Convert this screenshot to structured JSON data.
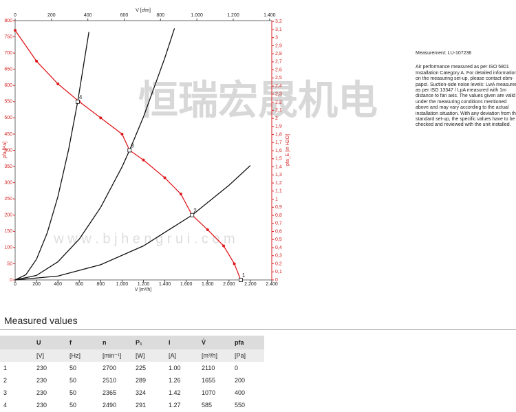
{
  "chart_data": {
    "type": "line",
    "title": "V [cfm]",
    "x_label": "V [m³/h]",
    "y_label": "pfa [Pa]",
    "y2_label": "pfa_E [in H2O]",
    "xlim": [
      0,
      2400
    ],
    "xticks": [
      0,
      200,
      400,
      600,
      800,
      {
        "value": 1000,
        "label": "1.000"
      },
      {
        "value": 1200,
        "label": "1.200"
      },
      {
        "value": 1400,
        "label": "1.400"
      },
      {
        "value": 1600,
        "label": "1.600"
      },
      {
        "value": 1800,
        "label": "1.800"
      },
      {
        "value": 2000,
        "label": "2.000"
      },
      {
        "value": 2200,
        "label": "2.200"
      },
      {
        "value": 2400,
        "label": "2.400"
      }
    ],
    "x2lim": [
      0,
      1412
    ],
    "x2ticks": [
      0,
      200,
      400,
      600,
      800,
      {
        "value": 1000,
        "label": "1.000"
      },
      {
        "value": 1200,
        "label": "1.200"
      },
      {
        "value": 1400,
        "label": "1.400"
      }
    ],
    "ylim": [
      0,
      800
    ],
    "yticks": [
      0,
      50,
      100,
      150,
      200,
      250,
      300,
      350,
      400,
      450,
      500,
      550,
      600,
      650,
      700,
      750,
      800
    ],
    "y2lim": [
      0,
      3.21
    ],
    "y2ticks": [
      0,
      {
        "value": 0.1,
        "label": "0,1"
      },
      {
        "value": 0.2,
        "label": "0,2"
      },
      {
        "value": 0.3,
        "label": "0,3"
      },
      {
        "value": 0.4,
        "label": "0,4"
      },
      {
        "value": 0.5,
        "label": "0,5"
      },
      {
        "value": 0.6,
        "label": "0,6"
      },
      {
        "value": 0.7,
        "label": "0,7"
      },
      {
        "value": 0.8,
        "label": "0,8"
      },
      {
        "value": 0.9,
        "label": "0,9"
      },
      1,
      {
        "value": 1.1,
        "label": "1,1"
      },
      {
        "value": 1.2,
        "label": "1,2"
      },
      {
        "value": 1.3,
        "label": "1,3"
      },
      {
        "value": 1.4,
        "label": "1,4"
      },
      {
        "value": 1.5,
        "label": "1,5"
      },
      {
        "value": 1.6,
        "label": "1,6"
      },
      {
        "value": 1.7,
        "label": "1,7"
      },
      {
        "value": 1.8,
        "label": "1,8"
      },
      {
        "value": 1.9,
        "label": "1,9"
      },
      2,
      {
        "value": 2.1,
        "label": "2,1"
      },
      {
        "value": 2.2,
        "label": "2,2"
      },
      {
        "value": 2.3,
        "label": "2,3"
      },
      {
        "value": 2.4,
        "label": "2,4"
      },
      {
        "value": 2.5,
        "label": "2,5"
      },
      {
        "value": 2.6,
        "label": "2,6"
      },
      {
        "value": 2.7,
        "label": "2,7"
      },
      {
        "value": 2.8,
        "label": "2,8"
      },
      {
        "value": 2.9,
        "label": "2,9"
      },
      3,
      {
        "value": 3.1,
        "label": "3,1"
      },
      {
        "value": 3.2,
        "label": "3,2"
      }
    ],
    "grid": false,
    "axis_color": "#d42020",
    "series": [
      {
        "color": "#e0191e",
        "markers": true,
        "x": [
          0,
          200,
          400,
          600,
          800,
          1000,
          1070,
          1200,
          1400,
          1550,
          1655,
          1800,
          1950,
          2050,
          2110
        ],
        "values": [
          770,
          675,
          605,
          550,
          500,
          450,
          400,
          370,
          315,
          265,
          200,
          155,
          105,
          50,
          0
        ]
      },
      {
        "color": "#111111",
        "markers": false,
        "x": [
          0,
          100,
          200,
          300,
          400,
          500,
          585,
          690
        ],
        "values": [
          0,
          16,
          64,
          145,
          257,
          402,
          550,
          765
        ]
      },
      {
        "color": "#111111",
        "markers": false,
        "x": [
          0,
          200,
          400,
          600,
          800,
          1000,
          1070,
          1200,
          1400,
          1490
        ],
        "values": [
          0,
          14,
          56,
          126,
          224,
          349,
          400,
          503,
          685,
          776
        ]
      },
      {
        "color": "#111111",
        "markers": false,
        "x": [
          0,
          400,
          800,
          1200,
          1655,
          2000,
          2200
        ],
        "values": [
          0,
          12,
          47,
          105,
          200,
          292,
          353
        ]
      }
    ],
    "points": {
      "labels": [
        "1",
        "2",
        "3",
        "4"
      ],
      "x": [
        2110,
        1655,
        1070,
        585
      ],
      "values": [
        0,
        200,
        400,
        550
      ]
    }
  },
  "watermark": {
    "text": "恒瑞宏晟机电",
    "url": "w w w . b j h e n g r u i . c o m"
  },
  "notes": {
    "measurement": "Measurement: LU-107236",
    "text": "Air performance measured as per ISO 5801 Installation Category A. For detailed information on the measuring set-up, please contact ebm-papst. Suction-side noise levels: LwA measured as per ISO 13347 / LpA measured with 1m distance to fan axis. The values given are valid under the measuring conditions mentioned above and may vary according to the actual installation situation. With any deviation from the standard set-up, the specific values have to be checked and reviewed with the unit installed."
  },
  "table": {
    "title": "Measured values",
    "headers": [
      "",
      "U",
      "f",
      "n",
      "P₁",
      "I",
      "V̇",
      "pfa"
    ],
    "units": [
      "",
      "[V]",
      "[Hz]",
      "[min⁻¹]",
      "[W]",
      "[A]",
      "[m³/h]",
      "[Pa]"
    ],
    "rows": [
      [
        "1",
        "230",
        "50",
        "2700",
        "225",
        "1.00",
        "2110",
        "0"
      ],
      [
        "2",
        "230",
        "50",
        "2510",
        "289",
        "1.26",
        "1655",
        "200"
      ],
      [
        "3",
        "230",
        "50",
        "2365",
        "324",
        "1.42",
        "1070",
        "400"
      ],
      [
        "4",
        "230",
        "50",
        "2490",
        "291",
        "1.27",
        "585",
        "550"
      ]
    ]
  }
}
